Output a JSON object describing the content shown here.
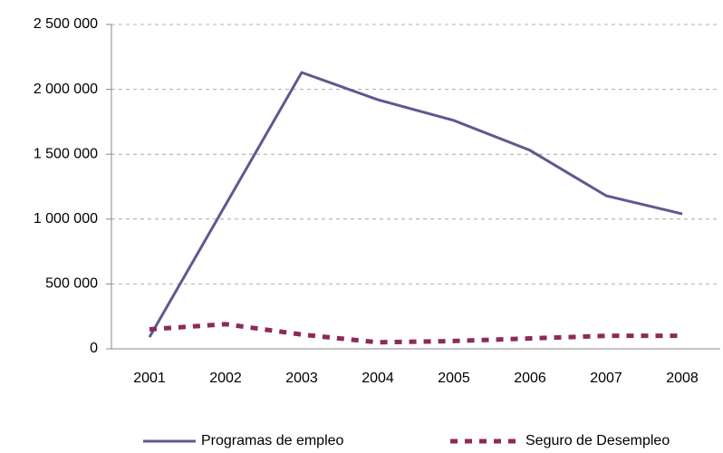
{
  "chart_data": {
    "type": "line",
    "categories": [
      "2001",
      "2002",
      "2003",
      "2004",
      "2005",
      "2006",
      "2007",
      "2008"
    ],
    "series": [
      {
        "name": "Programas de empleo",
        "color": "#5b5b8f",
        "dash": "solid",
        "values": [
          90000,
          1110000,
          2130000,
          1920000,
          1760000,
          1530000,
          1180000,
          1040000
        ]
      },
      {
        "name": "Seguro de Desempleo",
        "color": "#8c2a5a",
        "dash": "dashed",
        "values": [
          150000,
          190000,
          110000,
          50000,
          60000,
          80000,
          100000,
          100000
        ]
      }
    ],
    "ylim": [
      0,
      2500000
    ],
    "yticks": [
      0,
      {
        "value": 500000,
        "label": "500 000"
      },
      {
        "value": 1000000,
        "label": "1 000 000"
      },
      {
        "value": 1500000,
        "label": "1 500 000"
      },
      {
        "value": 2000000,
        "label": "2 000 000"
      },
      {
        "value": 2500000,
        "label": "2 500 000"
      }
    ],
    "grid": true,
    "legend": "bottom"
  }
}
